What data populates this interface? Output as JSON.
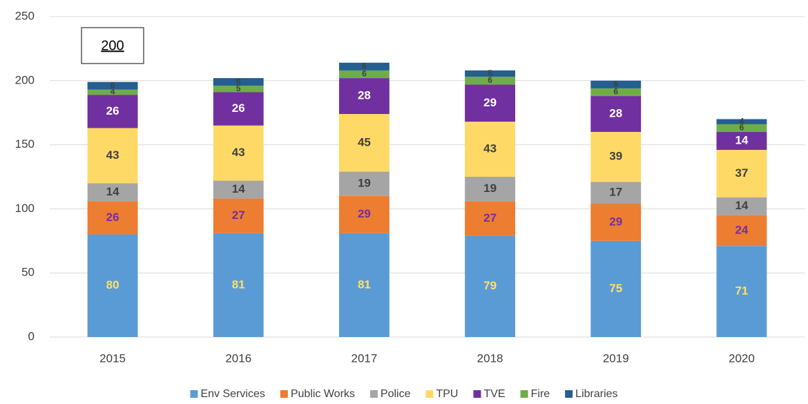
{
  "chart_data": {
    "type": "stacked_bar",
    "categories": [
      "2015",
      "2016",
      "2017",
      "2018",
      "2019",
      "2020"
    ],
    "series": [
      {
        "name": "Env Services",
        "color": "#5b9bd5",
        "values": [
          80,
          81,
          81,
          79,
          75,
          71
        ]
      },
      {
        "name": "Public Works",
        "color": "#ed7d31",
        "values": [
          26,
          27,
          29,
          27,
          29,
          24
        ]
      },
      {
        "name": "Police",
        "color": "#a5a5a5",
        "values": [
          14,
          14,
          19,
          19,
          17,
          14
        ]
      },
      {
        "name": "TPU",
        "color": "#ffd966",
        "values": [
          43,
          43,
          45,
          43,
          39,
          37
        ]
      },
      {
        "name": "TVE",
        "color": "#7030a0",
        "values": [
          26,
          26,
          28,
          29,
          28,
          14
        ]
      },
      {
        "name": "Fire",
        "color": "#70ad47",
        "values": [
          4,
          5,
          6,
          6,
          6,
          6
        ]
      },
      {
        "name": "Libraries",
        "color": "#255e91",
        "values": [
          6,
          6,
          6,
          5,
          6,
          4
        ]
      }
    ],
    "annotation": "200",
    "ylim": [
      0,
      250
    ],
    "yticks": [
      0,
      50,
      100,
      150,
      200,
      250
    ],
    "grid": true,
    "legend": "bottom"
  }
}
